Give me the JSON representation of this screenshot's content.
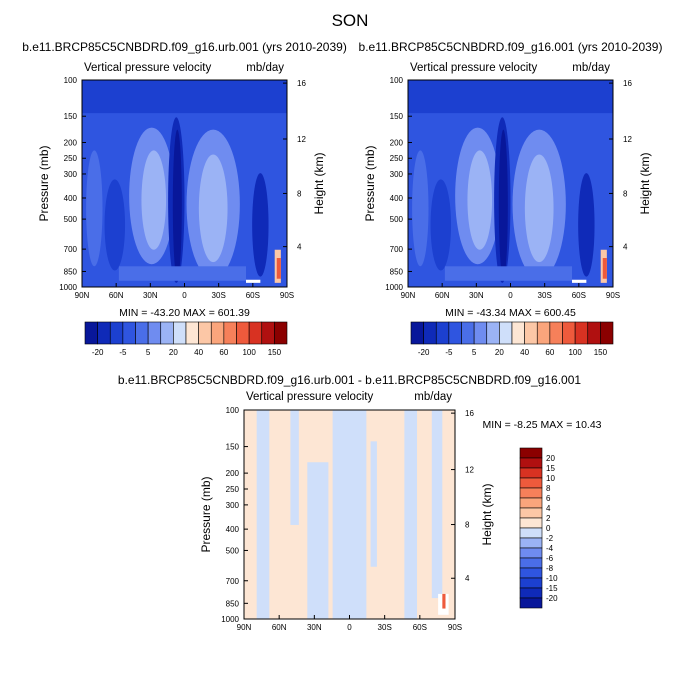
{
  "page_title": "SON",
  "colors": {
    "page_background": "#ffffff",
    "deep_blue": "#08179a",
    "mid_blue": "#2f55e0",
    "light_blue": "#6f8cf0",
    "pale_blue": "#cfdffa",
    "pale_peach": "#fde6d4",
    "deep_red": "#8b0000"
  },
  "chart_data": [
    {
      "type": "heatmap",
      "title": "b.e11.BRCP85C5CNBDRD.f09_g16.urb.001 (yrs 2010-2039)",
      "left_string": "Vertical pressure velocity",
      "right_string": "mb/day",
      "ylabel": "Pressure (mb)",
      "ylabel_right": "Height (km)",
      "x_ticks": [
        "90N",
        "60N",
        "30N",
        "0",
        "30S",
        "60S",
        "90S"
      ],
      "y_ticks": [
        "100",
        "150",
        "200",
        "250",
        "300",
        "400",
        "500",
        "700",
        "850",
        "1000"
      ],
      "y_right_ticks": [
        "16",
        "12",
        "8",
        "4"
      ],
      "stats_text": "MIN = -43.20   MAX = 601.39",
      "ylim": [
        1000,
        100
      ],
      "xlim": [
        "90N",
        "90S"
      ],
      "colorbar": {
        "orientation": "horizontal",
        "tick_labels": [
          "-20",
          "-5",
          "5",
          "20",
          "40",
          "60",
          "100",
          "150"
        ],
        "colors": [
          "#08179a",
          "#0f2ab8",
          "#1c40d0",
          "#2f55e0",
          "#4a6ee8",
          "#6f8cf0",
          "#9bb3f5",
          "#cfdffa",
          "#fde6d4",
          "#fcc7a6",
          "#faa57c",
          "#f6805a",
          "#ee5a3c",
          "#d83222",
          "#b01010",
          "#8b0000"
        ]
      }
    },
    {
      "type": "heatmap",
      "title": "b.e11.BRCP85C5CNBDRD.f09_g16.001 (yrs 2010-2039)",
      "left_string": "Vertical pressure velocity",
      "right_string": "mb/day",
      "ylabel": "Pressure (mb)",
      "ylabel_right": "Height (km)",
      "x_ticks": [
        "90N",
        "60N",
        "30N",
        "0",
        "30S",
        "60S",
        "90S"
      ],
      "y_ticks": [
        "100",
        "150",
        "200",
        "250",
        "300",
        "400",
        "500",
        "700",
        "850",
        "1000"
      ],
      "y_right_ticks": [
        "16",
        "12",
        "8",
        "4"
      ],
      "stats_text": "MIN = -43.34   MAX = 600.45",
      "ylim": [
        1000,
        100
      ],
      "xlim": [
        "90N",
        "90S"
      ],
      "colorbar": {
        "orientation": "horizontal",
        "tick_labels": [
          "-20",
          "-5",
          "5",
          "20",
          "40",
          "60",
          "100",
          "150"
        ],
        "colors": [
          "#08179a",
          "#0f2ab8",
          "#1c40d0",
          "#2f55e0",
          "#4a6ee8",
          "#6f8cf0",
          "#9bb3f5",
          "#cfdffa",
          "#fde6d4",
          "#fcc7a6",
          "#faa57c",
          "#f6805a",
          "#ee5a3c",
          "#d83222",
          "#b01010",
          "#8b0000"
        ]
      }
    },
    {
      "type": "heatmap",
      "title": "b.e11.BRCP85C5CNBDRD.f09_g16.urb.001 - b.e11.BRCP85C5CNBDRD.f09_g16.001",
      "left_string": "Vertical pressure velocity",
      "right_string": "mb/day",
      "ylabel": "Pressure (mb)",
      "ylabel_right": "Height (km)",
      "x_ticks": [
        "90N",
        "60N",
        "30N",
        "0",
        "30S",
        "60S",
        "90S"
      ],
      "y_ticks": [
        "100",
        "150",
        "200",
        "250",
        "300",
        "400",
        "500",
        "700",
        "850",
        "1000"
      ],
      "y_right_ticks": [
        "16",
        "12",
        "8",
        "4"
      ],
      "stats_text": "MIN = -8.25   MAX =  10.43",
      "ylim": [
        1000,
        100
      ],
      "xlim": [
        "90N",
        "90S"
      ],
      "colorbar": {
        "orientation": "vertical",
        "tick_labels": [
          "20",
          "15",
          "10",
          "8",
          "6",
          "4",
          "2",
          "0",
          "-2",
          "-4",
          "-6",
          "-8",
          "-10",
          "-15",
          "-20"
        ],
        "colors": [
          "#8b0000",
          "#b01010",
          "#d83222",
          "#ee5a3c",
          "#f6805a",
          "#faa57c",
          "#fcc7a6",
          "#fde6d4",
          "#cfdffa",
          "#9bb3f5",
          "#6f8cf0",
          "#4a6ee8",
          "#2f55e0",
          "#1c40d0",
          "#0f2ab8",
          "#08179a"
        ]
      }
    }
  ]
}
